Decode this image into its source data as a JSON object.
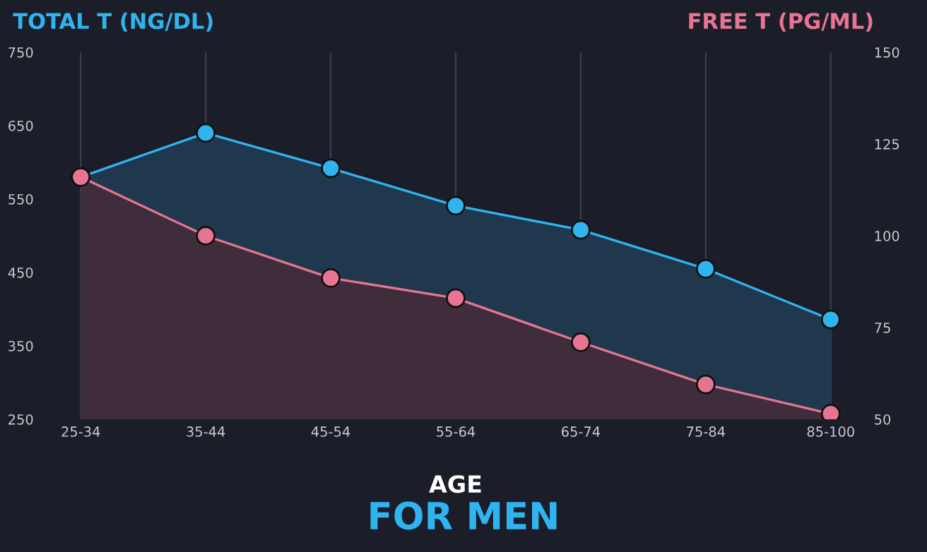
{
  "chart_data": {
    "type": "area",
    "title": "FOR MEN",
    "xlabel": "AGE",
    "ylabel": "TOTAL T (NG/DL)",
    "y2label": "FREE T (PG/ML)",
    "categories": [
      "25-34",
      "35-44",
      "45-54",
      "55-64",
      "65-74",
      "75-84",
      "85-100"
    ],
    "series": [
      {
        "color": "#2fb4ef",
        "values": [
          580,
          640,
          592,
          541,
          508,
          455,
          386
        ]
      },
      {
        "color": "#e57592",
        "axis": "y2",
        "values": [
          116,
          100,
          88.5,
          83,
          71,
          59.5,
          51.5
        ]
      }
    ],
    "ylim": [
      250,
      750
    ],
    "yticks": [
      250,
      350,
      450,
      550,
      650,
      750
    ],
    "y2lim": [
      50,
      150
    ],
    "y2ticks": [
      50,
      75,
      100,
      125,
      150
    ],
    "grid": "x",
    "marker": "circle",
    "line_style": "solid",
    "legend": false
  }
}
